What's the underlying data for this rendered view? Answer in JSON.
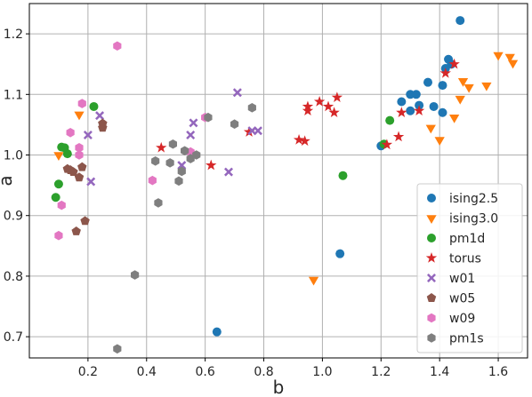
{
  "chart_data": {
    "type": "scatter",
    "xlabel": "b",
    "ylabel": "a",
    "xlim": [
      0.0,
      1.7
    ],
    "ylim": [
      0.665,
      1.25
    ],
    "xticks": [
      "0.2",
      "0.4",
      "0.6",
      "0.8",
      "1.0",
      "1.2",
      "1.4",
      "1.6"
    ],
    "yticks": [
      "0.7",
      "0.8",
      "0.9",
      "1.0",
      "1.1",
      "1.2"
    ],
    "grid": true,
    "legend_position": "bottom-right",
    "series": [
      {
        "name": "ising2.5",
        "marker": "circle",
        "color": "#1f77b4",
        "points": [
          [
            0.64,
            0.708
          ],
          [
            1.06,
            0.837
          ],
          [
            1.2,
            1.015
          ],
          [
            1.27,
            1.088
          ],
          [
            1.3,
            1.073
          ],
          [
            1.3,
            1.1
          ],
          [
            1.32,
            1.1
          ],
          [
            1.33,
            1.082
          ],
          [
            1.36,
            1.12
          ],
          [
            1.38,
            1.08
          ],
          [
            1.41,
            1.07
          ],
          [
            1.41,
            1.115
          ],
          [
            1.42,
            1.143
          ],
          [
            1.43,
            1.158
          ],
          [
            1.44,
            1.15
          ],
          [
            1.47,
            1.222
          ]
        ]
      },
      {
        "name": "ising3.0",
        "marker": "triangle_down",
        "color": "#ff7f0e",
        "points": [
          [
            0.97,
            0.794
          ],
          [
            0.17,
            1.067
          ],
          [
            0.1,
            1.0
          ],
          [
            1.37,
            1.045
          ],
          [
            1.4,
            1.025
          ],
          [
            1.45,
            1.062
          ],
          [
            1.47,
            1.093
          ],
          [
            1.48,
            1.122
          ],
          [
            1.5,
            1.112
          ],
          [
            1.56,
            1.115
          ],
          [
            1.6,
            1.165
          ],
          [
            1.64,
            1.162
          ],
          [
            1.65,
            1.152
          ]
        ]
      },
      {
        "name": "pm1d",
        "marker": "circle",
        "color": "#2ca02c",
        "points": [
          [
            0.09,
            0.93
          ],
          [
            0.1,
            0.952
          ],
          [
            0.11,
            1.013
          ],
          [
            0.12,
            1.012
          ],
          [
            0.13,
            1.002
          ],
          [
            0.22,
            1.08
          ],
          [
            1.07,
            0.966
          ],
          [
            1.21,
            1.018
          ],
          [
            1.23,
            1.057
          ]
        ]
      },
      {
        "name": "torus",
        "marker": "star",
        "color": "#d62728",
        "points": [
          [
            0.45,
            1.012
          ],
          [
            0.62,
            0.983
          ],
          [
            0.75,
            1.038
          ],
          [
            0.92,
            1.025
          ],
          [
            0.94,
            1.023
          ],
          [
            0.95,
            1.08
          ],
          [
            0.95,
            1.073
          ],
          [
            0.99,
            1.088
          ],
          [
            1.02,
            1.08
          ],
          [
            1.04,
            1.07
          ],
          [
            1.05,
            1.095
          ],
          [
            1.22,
            1.017
          ],
          [
            1.26,
            1.03
          ],
          [
            1.27,
            1.07
          ],
          [
            1.33,
            1.073
          ],
          [
            1.42,
            1.135
          ],
          [
            1.45,
            1.15
          ]
        ]
      },
      {
        "name": "w01",
        "marker": "x",
        "color": "#9467bd",
        "points": [
          [
            0.2,
            1.033
          ],
          [
            0.21,
            0.956
          ],
          [
            0.24,
            1.065
          ],
          [
            0.52,
            0.983
          ],
          [
            0.55,
            1.033
          ],
          [
            0.56,
            1.053
          ],
          [
            0.68,
            0.972
          ],
          [
            0.71,
            1.103
          ],
          [
            0.76,
            1.04
          ],
          [
            0.78,
            1.04
          ]
        ]
      },
      {
        "name": "w05",
        "marker": "pentagon",
        "color": "#8c564b",
        "points": [
          [
            0.13,
            0.977
          ],
          [
            0.14,
            0.975
          ],
          [
            0.15,
            0.972
          ],
          [
            0.16,
            0.874
          ],
          [
            0.17,
            0.963
          ],
          [
            0.18,
            0.98
          ],
          [
            0.19,
            0.891
          ],
          [
            0.25,
            1.045
          ],
          [
            0.25,
            1.052
          ]
        ]
      },
      {
        "name": "w09",
        "marker": "hexagon",
        "color": "#e377c2",
        "points": [
          [
            0.1,
            0.867
          ],
          [
            0.11,
            0.917
          ],
          [
            0.14,
            1.037
          ],
          [
            0.17,
            1.012
          ],
          [
            0.17,
            1.0
          ],
          [
            0.18,
            1.085
          ],
          [
            0.3,
            1.18
          ],
          [
            0.42,
            0.958
          ],
          [
            0.55,
            1.005
          ],
          [
            0.6,
            1.062
          ]
        ]
      },
      {
        "name": "pm1s",
        "marker": "hexagon",
        "color": "#7f7f7f",
        "points": [
          [
            0.3,
            0.68
          ],
          [
            0.36,
            0.802
          ],
          [
            0.43,
            0.99
          ],
          [
            0.44,
            0.921
          ],
          [
            0.48,
            0.987
          ],
          [
            0.49,
            1.018
          ],
          [
            0.51,
            0.957
          ],
          [
            0.52,
            0.973
          ],
          [
            0.53,
            1.007
          ],
          [
            0.55,
            0.994
          ],
          [
            0.57,
            1.0
          ],
          [
            0.61,
            1.062
          ],
          [
            0.7,
            1.051
          ],
          [
            0.76,
            1.078
          ]
        ]
      }
    ]
  }
}
